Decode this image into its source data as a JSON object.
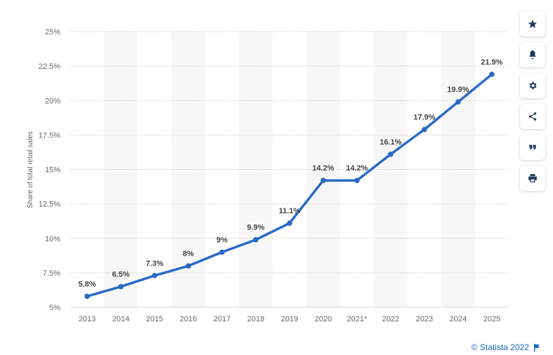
{
  "chart_data": {
    "type": "line",
    "categories": [
      "2013",
      "2014",
      "2015",
      "2016",
      "2017",
      "2018",
      "2019",
      "2020",
      "2021*",
      "2022",
      "2023",
      "2024",
      "2025"
    ],
    "series": [
      {
        "values": [
          5.8,
          6.5,
          7.3,
          8,
          9,
          9.9,
          11.1,
          14.2,
          14.2,
          16.1,
          17.9,
          19.9,
          21.9
        ],
        "labels": [
          "5.8%",
          "6.5%",
          "7.3%",
          "8%",
          "9%",
          "9.9%",
          "11.1%",
          "14.2%",
          "14.2%",
          "16.1%",
          "17.9%",
          "19.9%",
          "21.9%"
        ]
      }
    ],
    "ylabel": "Share of total retail sales",
    "ylim": [
      5,
      25
    ],
    "yticks": [
      5,
      7.5,
      10,
      12.5,
      15,
      17.5,
      20,
      22.5,
      25
    ],
    "ytick_labels": [
      "5%",
      "7.5%",
      "10%",
      "12.5%",
      "15%",
      "17.5%",
      "20%",
      "22.5%",
      "25%"
    ],
    "grid": "horizontal dotted",
    "colors": {
      "line": "#2a6ac8",
      "band": "#f7f7f7",
      "grid": "#c8c8c8",
      "axis_text": "#666666",
      "label_text": "#444444"
    }
  },
  "toolbar": {
    "buttons": [
      {
        "name": "star-button",
        "icon": "star-icon"
      },
      {
        "name": "notification-button",
        "icon": "bell-icon"
      },
      {
        "name": "settings-button",
        "icon": "gear-icon"
      },
      {
        "name": "share-button",
        "icon": "share-icon"
      },
      {
        "name": "cite-button",
        "icon": "quote-icon"
      },
      {
        "name": "print-button",
        "icon": "print-icon"
      }
    ]
  },
  "credit": {
    "text": "© Statista 2022",
    "icon": "flag-icon",
    "color": "#1e64c8"
  }
}
